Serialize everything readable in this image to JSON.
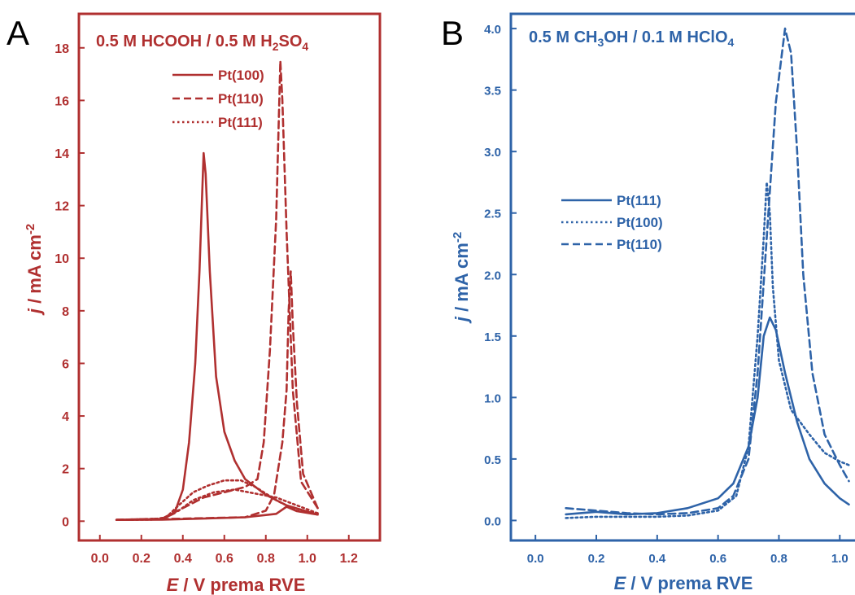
{
  "panels": [
    {
      "label": "A",
      "title": "0.5 M HCOOH / 0.5 M H2SO4",
      "title_parts": {
        "main": "0.5 M HCOOH / 0.5 M H",
        "sub1": "2",
        "mid": "SO",
        "sub2": "4"
      },
      "ylabel": "j / mA cm-2",
      "ylabel_parts": {
        "var": "j",
        "unit": " / mA cm",
        "sup": "-2"
      },
      "xlabel": "E / V prema RVE",
      "xlabel_parts": {
        "var": "E",
        "rest": " / V prema RVE"
      },
      "color": "#b03030"
    },
    {
      "label": "B",
      "title": "0.5 M CH3OH / 0.1 M HClO4",
      "title_parts": {
        "main": "0.5 M CH",
        "sub1": "3",
        "mid": "OH / 0.1 M HClO",
        "sub2": "4"
      },
      "ylabel": "j / mA cm-2",
      "ylabel_parts": {
        "var": "j",
        "unit": " / mA cm",
        "sup": "-2"
      },
      "xlabel": "E / V prema RVE",
      "xlabel_parts": {
        "var": "E",
        "rest": " / V prema RVE"
      },
      "color": "#2e63a8"
    }
  ],
  "chart_data": [
    {
      "type": "line",
      "panel": "A",
      "title": "0.5 M HCOOH / 0.5 M H2SO4",
      "xlabel": "E / V prema RVE",
      "ylabel": "j / mA cm-2",
      "xlim": [
        -0.05,
        1.35
      ],
      "ylim": [
        -0.3,
        19.2
      ],
      "xticks": [
        0.0,
        0.2,
        0.4,
        0.6,
        0.8,
        1.0,
        1.2
      ],
      "xtick_labels": [
        "0.0",
        "0.2",
        "0.4",
        "0.6",
        "0.8",
        "1.0",
        "1.2"
      ],
      "yticks": [
        0,
        2,
        4,
        6,
        8,
        10,
        12,
        14,
        16,
        18
      ],
      "ytick_labels": [
        "0",
        "2",
        "4",
        "6",
        "8",
        "10",
        "12",
        "14",
        "16",
        "18"
      ],
      "legend_position": "top-center",
      "grid": false,
      "series": [
        {
          "name": "Pt(100)",
          "style": "solid",
          "paths": [
            [
              [
                0.08,
                0.05
              ],
              [
                0.3,
                0.06
              ],
              [
                0.5,
                0.1
              ],
              [
                0.7,
                0.15
              ],
              [
                0.85,
                0.28
              ],
              [
                0.9,
                0.55
              ],
              [
                0.95,
                0.38
              ],
              [
                1.05,
                0.25
              ]
            ],
            [
              [
                0.08,
                0.05
              ],
              [
                0.3,
                0.08
              ],
              [
                0.36,
                0.3
              ],
              [
                0.4,
                1.2
              ],
              [
                0.43,
                3.0
              ],
              [
                0.46,
                6.0
              ],
              [
                0.48,
                9.5
              ],
              [
                0.5,
                14.0
              ],
              [
                0.51,
                13.2
              ],
              [
                0.53,
                9.5
              ],
              [
                0.56,
                5.5
              ],
              [
                0.6,
                3.4
              ],
              [
                0.65,
                2.3
              ],
              [
                0.7,
                1.6
              ],
              [
                0.8,
                1.0
              ],
              [
                0.9,
                0.6
              ],
              [
                1.05,
                0.25
              ]
            ]
          ]
        },
        {
          "name": "Pt(110)",
          "style": "dashed",
          "paths": [
            [
              [
                0.08,
                0.05
              ],
              [
                0.3,
                0.1
              ],
              [
                0.4,
                0.5
              ],
              [
                0.5,
                0.9
              ],
              [
                0.6,
                1.1
              ],
              [
                0.7,
                1.3
              ],
              [
                0.76,
                1.6
              ],
              [
                0.79,
                3.0
              ],
              [
                0.82,
                6.5
              ],
              [
                0.85,
                11.5
              ],
              [
                0.87,
                17.5
              ],
              [
                0.88,
                16.0
              ],
              [
                0.9,
                11.0
              ],
              [
                0.93,
                5.0
              ],
              [
                0.97,
                1.5
              ],
              [
                1.05,
                0.5
              ]
            ],
            [
              [
                1.05,
                0.5
              ],
              [
                0.98,
                1.8
              ],
              [
                0.95,
                4.5
              ],
              [
                0.93,
                7.5
              ],
              [
                0.92,
                9.5
              ],
              [
                0.91,
                8.0
              ],
              [
                0.9,
                5.0
              ],
              [
                0.88,
                3.0
              ],
              [
                0.84,
                1.0
              ],
              [
                0.8,
                0.4
              ],
              [
                0.7,
                0.15
              ],
              [
                0.3,
                0.08
              ],
              [
                0.08,
                0.05
              ]
            ]
          ]
        },
        {
          "name": "Pt(111)",
          "style": "dotted",
          "paths": [
            [
              [
                0.08,
                0.05
              ],
              [
                0.25,
                0.06
              ],
              [
                0.32,
                0.15
              ],
              [
                0.38,
                0.6
              ],
              [
                0.45,
                1.1
              ],
              [
                0.52,
                1.35
              ],
              [
                0.6,
                1.55
              ],
              [
                0.68,
                1.55
              ],
              [
                0.75,
                1.3
              ],
              [
                0.85,
                0.8
              ],
              [
                0.95,
                0.4
              ],
              [
                1.05,
                0.3
              ]
            ],
            [
              [
                1.05,
                0.3
              ],
              [
                0.95,
                0.6
              ],
              [
                0.85,
                0.9
              ],
              [
                0.75,
                1.05
              ],
              [
                0.65,
                1.2
              ],
              [
                0.55,
                1.1
              ],
              [
                0.45,
                0.8
              ],
              [
                0.38,
                0.4
              ],
              [
                0.3,
                0.1
              ],
              [
                0.08,
                0.05
              ]
            ]
          ]
        }
      ]
    },
    {
      "type": "line",
      "panel": "B",
      "title": "0.5 M CH3OH / 0.1 M HClO4",
      "xlabel": "E / V prema RVE",
      "ylabel": "j / mA cm-2",
      "xlim": [
        -0.07,
        1.05
      ],
      "ylim": [
        -0.07,
        4.1
      ],
      "xticks": [
        0.0,
        0.2,
        0.4,
        0.6,
        0.8,
        1.0
      ],
      "xtick_labels": [
        "0.0",
        "0.2",
        "0.4",
        "0.6",
        "0.8",
        "1.0"
      ],
      "yticks": [
        0.0,
        0.5,
        1.0,
        1.5,
        2.0,
        2.5,
        3.0,
        3.5,
        4.0
      ],
      "ytick_labels": [
        "0.0",
        "0.5",
        "1.0",
        "1.5",
        "2.0",
        "2.5",
        "3.0",
        "3.5",
        "4.0"
      ],
      "legend_position": "center-left",
      "grid": false,
      "series": [
        {
          "name": "Pt(111)",
          "style": "solid",
          "paths": [
            [
              [
                0.1,
                0.05
              ],
              [
                0.2,
                0.07
              ],
              [
                0.3,
                0.05
              ],
              [
                0.4,
                0.06
              ],
              [
                0.5,
                0.1
              ],
              [
                0.6,
                0.18
              ],
              [
                0.65,
                0.3
              ],
              [
                0.7,
                0.6
              ],
              [
                0.73,
                1.0
              ],
              [
                0.75,
                1.5
              ],
              [
                0.77,
                1.65
              ],
              [
                0.79,
                1.55
              ],
              [
                0.82,
                1.2
              ],
              [
                0.86,
                0.8
              ],
              [
                0.9,
                0.5
              ],
              [
                0.95,
                0.3
              ],
              [
                1.0,
                0.18
              ],
              [
                1.03,
                0.13
              ]
            ]
          ]
        },
        {
          "name": "Pt(100)",
          "style": "dotted",
          "paths": [
            [
              [
                0.1,
                0.02
              ],
              [
                0.2,
                0.03
              ],
              [
                0.3,
                0.03
              ],
              [
                0.4,
                0.03
              ],
              [
                0.5,
                0.04
              ],
              [
                0.6,
                0.08
              ],
              [
                0.66,
                0.2
              ],
              [
                0.7,
                0.6
              ],
              [
                0.73,
                1.5
              ],
              [
                0.75,
                2.3
              ],
              [
                0.76,
                2.75
              ],
              [
                0.77,
                2.5
              ],
              [
                0.78,
                1.9
              ],
              [
                0.8,
                1.3
              ],
              [
                0.84,
                0.9
              ],
              [
                0.9,
                0.7
              ],
              [
                0.95,
                0.55
              ],
              [
                1.0,
                0.48
              ],
              [
                1.03,
                0.45
              ]
            ]
          ]
        },
        {
          "name": "Pt(110)",
          "style": "dashed",
          "paths": [
            [
              [
                0.1,
                0.1
              ],
              [
                0.2,
                0.08
              ],
              [
                0.3,
                0.06
              ],
              [
                0.4,
                0.05
              ],
              [
                0.5,
                0.06
              ],
              [
                0.6,
                0.1
              ],
              [
                0.65,
                0.2
              ],
              [
                0.7,
                0.5
              ],
              [
                0.73,
                1.2
              ],
              [
                0.76,
                2.3
              ],
              [
                0.79,
                3.4
              ],
              [
                0.82,
                4.0
              ],
              [
                0.84,
                3.8
              ],
              [
                0.86,
                3.0
              ],
              [
                0.88,
                2.0
              ],
              [
                0.91,
                1.2
              ],
              [
                0.95,
                0.7
              ],
              [
                1.0,
                0.45
              ],
              [
                1.03,
                0.32
              ]
            ]
          ]
        }
      ]
    }
  ]
}
